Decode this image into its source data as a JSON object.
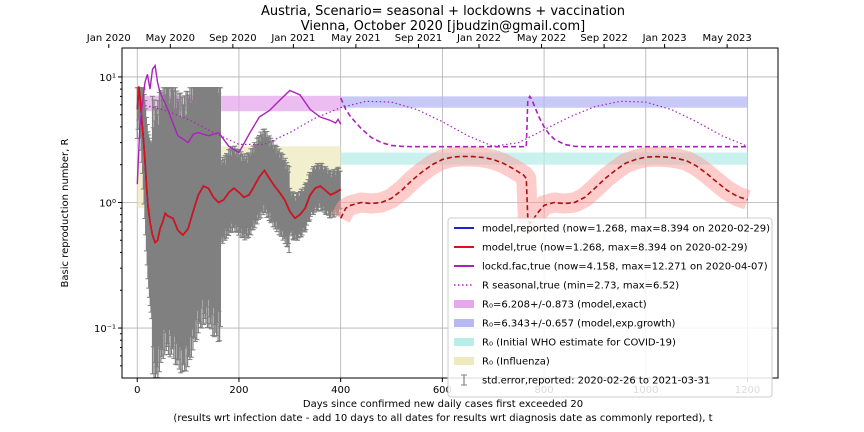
{
  "chart_data": {
    "type": "line",
    "title": "Austria, Scenario= seasonal + lockdowns + vaccination",
    "subtitle": "Vienna, October 2020 [jbudzin@gmail.com]",
    "xlabel": "Days since confirmed new daily cases first exceeded 20",
    "xlabel2": "(results wrt infection date - add 10 days to all dates for results wrt diagnosis date as commonly reported), t",
    "ylabel": "Basic reproduction number, R",
    "xlim": [
      -30,
      1260
    ],
    "ylim": [
      0.04,
      17
    ],
    "yscale": "log",
    "grid": true,
    "legend_position": "lower-right",
    "x_ticks": [
      0,
      200,
      400,
      600,
      800,
      1000,
      1200
    ],
    "x_tick_labels": [
      "0",
      "200",
      "400",
      "600",
      "800",
      "1000",
      "1200"
    ],
    "y_ticks": [
      0.1,
      1,
      10
    ],
    "y_tick_labels": [
      "10⁻¹",
      "10⁰",
      "10¹"
    ],
    "top_axis": {
      "ticks": [
        -56,
        65,
        188,
        307,
        430,
        553,
        672,
        795,
        918,
        1037,
        1160
      ],
      "labels": [
        "Jan 2020",
        "May 2020",
        "Sep 2020",
        "Jan 2021",
        "May 2021",
        "Sep 2021",
        "Jan 2022",
        "May 2022",
        "Sep 2022",
        "Jan 2023",
        "May 2023"
      ]
    },
    "bands": [
      {
        "name": "R₀=6.208+/-0.873 (model,exact)",
        "x": [
          0,
          400
        ],
        "y": [
          5.335,
          7.081
        ],
        "color": "#e6a7ec"
      },
      {
        "name": "R₀=6.343+/-0.657 (model,exp.growth)",
        "x": [
          400,
          1200
        ],
        "y": [
          5.686,
          7.0
        ],
        "color": "#b7b7f4"
      },
      {
        "name": "R₀ (Initial WHO estimate for COVID-19)",
        "x": [
          400,
          1200
        ],
        "y": [
          2.0,
          2.5
        ],
        "color": "#b7eeea"
      },
      {
        "name": "R₀ (Influenza)",
        "x": [
          0,
          400
        ],
        "y": [
          0.9,
          2.8
        ],
        "color": "#eeeabe"
      }
    ],
    "series": [
      {
        "name": "model,reported (now=1.268, max=8.394 on 2020-02-29)",
        "color": "#2222cc",
        "x": [
          0,
          3,
          6,
          9,
          12,
          15,
          18,
          21,
          25,
          30,
          35,
          40,
          45,
          50,
          55,
          60,
          70,
          80,
          90,
          100,
          110,
          120,
          130,
          140,
          150,
          160,
          170,
          180,
          190,
          200,
          210,
          220,
          230,
          240,
          250,
          260,
          270,
          280,
          290,
          300,
          310,
          320,
          330,
          340,
          350,
          360,
          370,
          380,
          390,
          400
        ],
        "y": [
          5.5,
          8.4,
          6.5,
          4.5,
          3.2,
          2.2,
          1.4,
          0.95,
          0.7,
          0.55,
          0.48,
          0.5,
          0.62,
          0.7,
          0.82,
          0.78,
          0.75,
          0.6,
          0.55,
          0.62,
          0.85,
          1.15,
          1.35,
          1.3,
          1.1,
          1.0,
          1.05,
          1.2,
          1.3,
          1.2,
          1.1,
          1.15,
          1.35,
          1.6,
          1.8,
          1.55,
          1.35,
          1.2,
          1.05,
          0.85,
          0.75,
          0.8,
          0.9,
          1.15,
          1.3,
          1.35,
          1.25,
          1.15,
          1.2,
          1.27
        ]
      },
      {
        "name": "model,true (now=1.268, max=8.394 on 2020-02-29)",
        "color": "#dd1111",
        "x": [
          0,
          3,
          6,
          9,
          12,
          15,
          18,
          21,
          25,
          30,
          35,
          40,
          45,
          50,
          55,
          60,
          70,
          80,
          90,
          100,
          110,
          120,
          130,
          140,
          150,
          160,
          170,
          180,
          190,
          200,
          210,
          220,
          230,
          240,
          250,
          260,
          270,
          280,
          290,
          300,
          310,
          320,
          330,
          340,
          350,
          360,
          370,
          380,
          390,
          400
        ],
        "y": [
          5.5,
          8.4,
          6.5,
          4.5,
          3.2,
          2.2,
          1.4,
          0.95,
          0.7,
          0.55,
          0.48,
          0.5,
          0.62,
          0.7,
          0.82,
          0.78,
          0.75,
          0.6,
          0.55,
          0.62,
          0.85,
          1.15,
          1.35,
          1.3,
          1.1,
          1.0,
          1.05,
          1.2,
          1.3,
          1.2,
          1.1,
          1.15,
          1.35,
          1.6,
          1.8,
          1.55,
          1.35,
          1.2,
          1.05,
          0.85,
          0.75,
          0.8,
          0.9,
          1.15,
          1.3,
          1.35,
          1.25,
          1.15,
          1.2,
          1.27
        ]
      },
      {
        "name": "lockd.fac,true (now=4.158, max=12.271 on 2020-04-07)",
        "color": "#aa22bb",
        "x": [
          0,
          5,
          10,
          15,
          20,
          25,
          30,
          35,
          40,
          45,
          50,
          60,
          70,
          80,
          90,
          100,
          110,
          120,
          140,
          160,
          180,
          200,
          220,
          240,
          260,
          280,
          300,
          320,
          340,
          360,
          380,
          390,
          395,
          400
        ],
        "y": [
          1.4,
          4.0,
          6.0,
          9.0,
          10.5,
          8.0,
          11.5,
          12.3,
          9.0,
          7.5,
          6.8,
          5.5,
          4.3,
          3.4,
          3.2,
          3.0,
          3.5,
          3.6,
          3.4,
          3.6,
          2.8,
          2.5,
          3.5,
          4.8,
          5.4,
          6.5,
          7.8,
          7.2,
          5.5,
          4.8,
          4.5,
          4.3,
          4.6,
          4.2
        ]
      },
      {
        "name": "R seasonal,true (min=2.73, max=6.52)",
        "color": "#aa22bb",
        "x": [
          0,
          50,
          100,
          150,
          200,
          250,
          300,
          350,
          400,
          450,
          500,
          550,
          600,
          650,
          700,
          750,
          800,
          850,
          900,
          950,
          1000,
          1050,
          1100,
          1150,
          1200
        ],
        "y": [
          6.1,
          5.5,
          4.6,
          3.6,
          2.9,
          2.9,
          3.6,
          4.7,
          5.7,
          6.4,
          6.3,
          5.5,
          4.4,
          3.4,
          2.8,
          3.0,
          3.8,
          4.8,
          5.8,
          6.4,
          6.3,
          5.5,
          4.4,
          3.4,
          2.8
        ]
      }
    ],
    "forecast": [
      {
        "color": "#aa22bb",
        "x": [
          400,
          410,
          420,
          440,
          460,
          480,
          500,
          520,
          540,
          560,
          580,
          600,
          620,
          640,
          660,
          680,
          700,
          720,
          740,
          760,
          765,
          768,
          772,
          776,
          780,
          790,
          800,
          810,
          820,
          840,
          860,
          880,
          900,
          950,
          1000,
          1050,
          1100,
          1150,
          1200
        ],
        "y": [
          6.8,
          5.5,
          4.8,
          3.9,
          3.3,
          3.0,
          2.85,
          2.8,
          2.78,
          2.78,
          2.78,
          2.78,
          2.78,
          2.78,
          2.78,
          2.78,
          2.78,
          2.78,
          2.78,
          2.78,
          2.78,
          6.5,
          7.0,
          6.6,
          6.0,
          4.8,
          4.0,
          3.5,
          3.2,
          2.9,
          2.8,
          2.78,
          2.78,
          2.78,
          2.78,
          2.78,
          2.78,
          2.78,
          2.78
        ]
      },
      {
        "color": "#aa1111",
        "x": [
          400,
          410,
          420,
          440,
          460,
          480,
          500,
          520,
          540,
          560,
          580,
          600,
          620,
          640,
          660,
          680,
          700,
          720,
          740,
          760,
          765,
          768,
          772,
          776,
          780,
          790,
          800,
          820,
          840,
          860,
          880,
          900,
          920,
          940,
          960,
          980,
          1000,
          1020,
          1040,
          1060,
          1080,
          1100,
          1120,
          1140,
          1160,
          1180,
          1200
        ],
        "y": [
          0.75,
          0.9,
          0.95,
          1.0,
          0.98,
          1.0,
          1.08,
          1.25,
          1.5,
          1.75,
          2.0,
          2.2,
          2.3,
          2.33,
          2.32,
          2.28,
          2.2,
          2.05,
          1.85,
          1.65,
          1.55,
          0.75,
          0.68,
          0.72,
          0.75,
          0.85,
          0.95,
          1.0,
          0.98,
          1.0,
          1.1,
          1.3,
          1.55,
          1.8,
          2.05,
          2.2,
          2.3,
          2.32,
          2.3,
          2.25,
          2.15,
          1.95,
          1.7,
          1.45,
          1.25,
          1.12,
          1.05
        ]
      }
    ],
    "error_bars": {
      "name": "std.error,reported: 2020-02-26 to 2021-03-31",
      "color": "#808080"
    },
    "legend": [
      {
        "label": "model,reported (now=1.268, max=8.394 on 2020-02-29)",
        "kind": "line",
        "color": "#2222cc"
      },
      {
        "label": "model,true (now=1.268, max=8.394 on 2020-02-29)",
        "kind": "line",
        "color": "#dd1111"
      },
      {
        "label": "lockd.fac,true (now=4.158, max=12.271 on 2020-04-07)",
        "kind": "line",
        "color": "#aa22bb"
      },
      {
        "label": "R seasonal,true (min=2.73, max=6.52)",
        "kind": "dotted",
        "color": "#aa22bb"
      },
      {
        "label": "R₀=6.208+/-0.873 (model,exact)",
        "kind": "patch",
        "color": "#e6a7ec"
      },
      {
        "label": "R₀=6.343+/-0.657 (model,exp.growth)",
        "kind": "patch",
        "color": "#b7b7f4"
      },
      {
        "label": "R₀ (Initial WHO estimate for COVID-19)",
        "kind": "patch",
        "color": "#b7eeea"
      },
      {
        "label": "R₀ (Influenza)",
        "kind": "patch",
        "color": "#eeeabe"
      },
      {
        "label": "std.error,reported: 2020-02-26 to 2021-03-31",
        "kind": "errorbar",
        "color": "#808080"
      }
    ]
  }
}
